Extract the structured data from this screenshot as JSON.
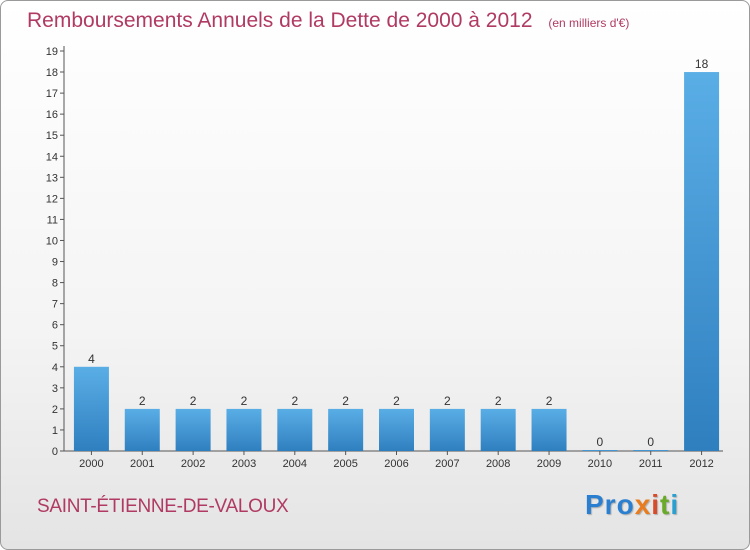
{
  "chart_data": {
    "type": "bar",
    "title": "Remboursements Annuels de la Dette de 2000 à 2012",
    "subtitle": "(en milliers d'€)",
    "categories": [
      "2000",
      "2001",
      "2002",
      "2003",
      "2004",
      "2005",
      "2006",
      "2007",
      "2008",
      "2009",
      "2010",
      "2011",
      "2012"
    ],
    "values": [
      4,
      2,
      2,
      2,
      2,
      2,
      2,
      2,
      2,
      2,
      0,
      0,
      18
    ],
    "ylim": [
      0,
      19
    ],
    "yticks": [
      0,
      1,
      2,
      3,
      4,
      5,
      6,
      7,
      8,
      9,
      10,
      11,
      12,
      13,
      14,
      15,
      16,
      17,
      18,
      19
    ],
    "xlabel": "",
    "ylabel": "",
    "bar_color": "#4a9fdc"
  },
  "commune": "SAINT-ÉTIENNE-DE-VALOUX",
  "logo": {
    "p1": "Pro",
    "p2": "x",
    "p3": "i",
    "p4": "t",
    "p5": "i"
  }
}
